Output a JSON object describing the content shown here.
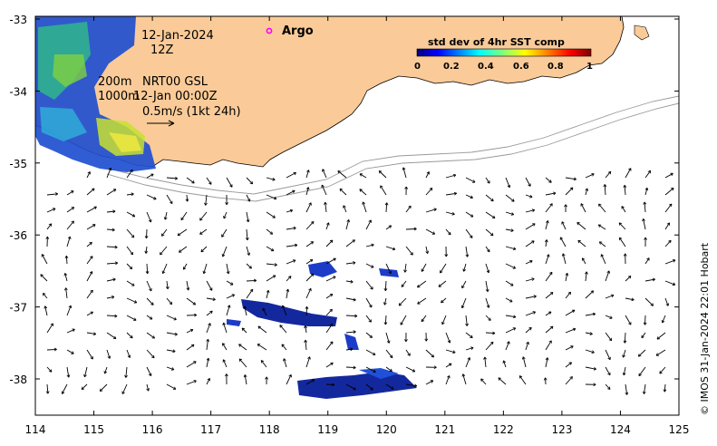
{
  "map": {
    "x_ticks": [
      "114",
      "115",
      "116",
      "117",
      "118",
      "119",
      "120",
      "121",
      "122",
      "123",
      "124",
      "125"
    ],
    "y_ticks": [
      "-33",
      "-34",
      "-35",
      "-36",
      "-37",
      "-38"
    ],
    "date_line": "12-Jan-2024",
    "hour_line": "12Z",
    "depth_line_1": "200m",
    "depth_line_2": "1000m",
    "product_line": "NRT00 GSL",
    "analysis_line": "12-Jan 00:00Z",
    "scale_line": "0.5m/s (1kt 24h)",
    "argo_label": "Argo",
    "credit": "© IMOS 31-Jan-2024 22:01 Hobart",
    "colors": {
      "land": "#FACB98",
      "argo_marker": "#FF00FF",
      "contour": "#999999"
    }
  },
  "colorbar": {
    "title": "std dev of 4hr SST comp",
    "ticks": [
      "0",
      "0.2",
      "0.4",
      "0.6",
      "0.8",
      "1"
    ],
    "colormap": "jet"
  }
}
